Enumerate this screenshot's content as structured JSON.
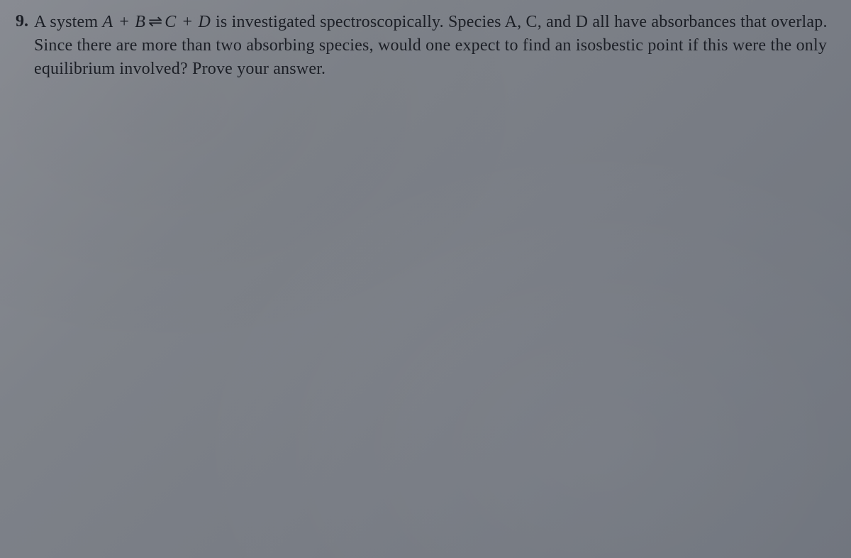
{
  "document": {
    "type": "textbook-problem",
    "background_color": "#80848c",
    "text_color": "#1c1f26",
    "font_family": "Georgia, Times New Roman, serif",
    "font_size_pt": 24
  },
  "problem": {
    "number": "9.",
    "text_parts": {
      "part1": "A system ",
      "equation_A": "A",
      "plus1": " + ",
      "equation_B": "B",
      "equilibrium_symbol": "⇌",
      "equation_C": "C",
      "plus2": " + ",
      "equation_D": "D",
      "part2": " is investigated spectroscopically. Species A, C, and D all have absorbances that overlap. Since there are more than two absorbing species, would one expect to find an isosbestic point if this were the only equilibrium involved? Prove your answer."
    }
  }
}
